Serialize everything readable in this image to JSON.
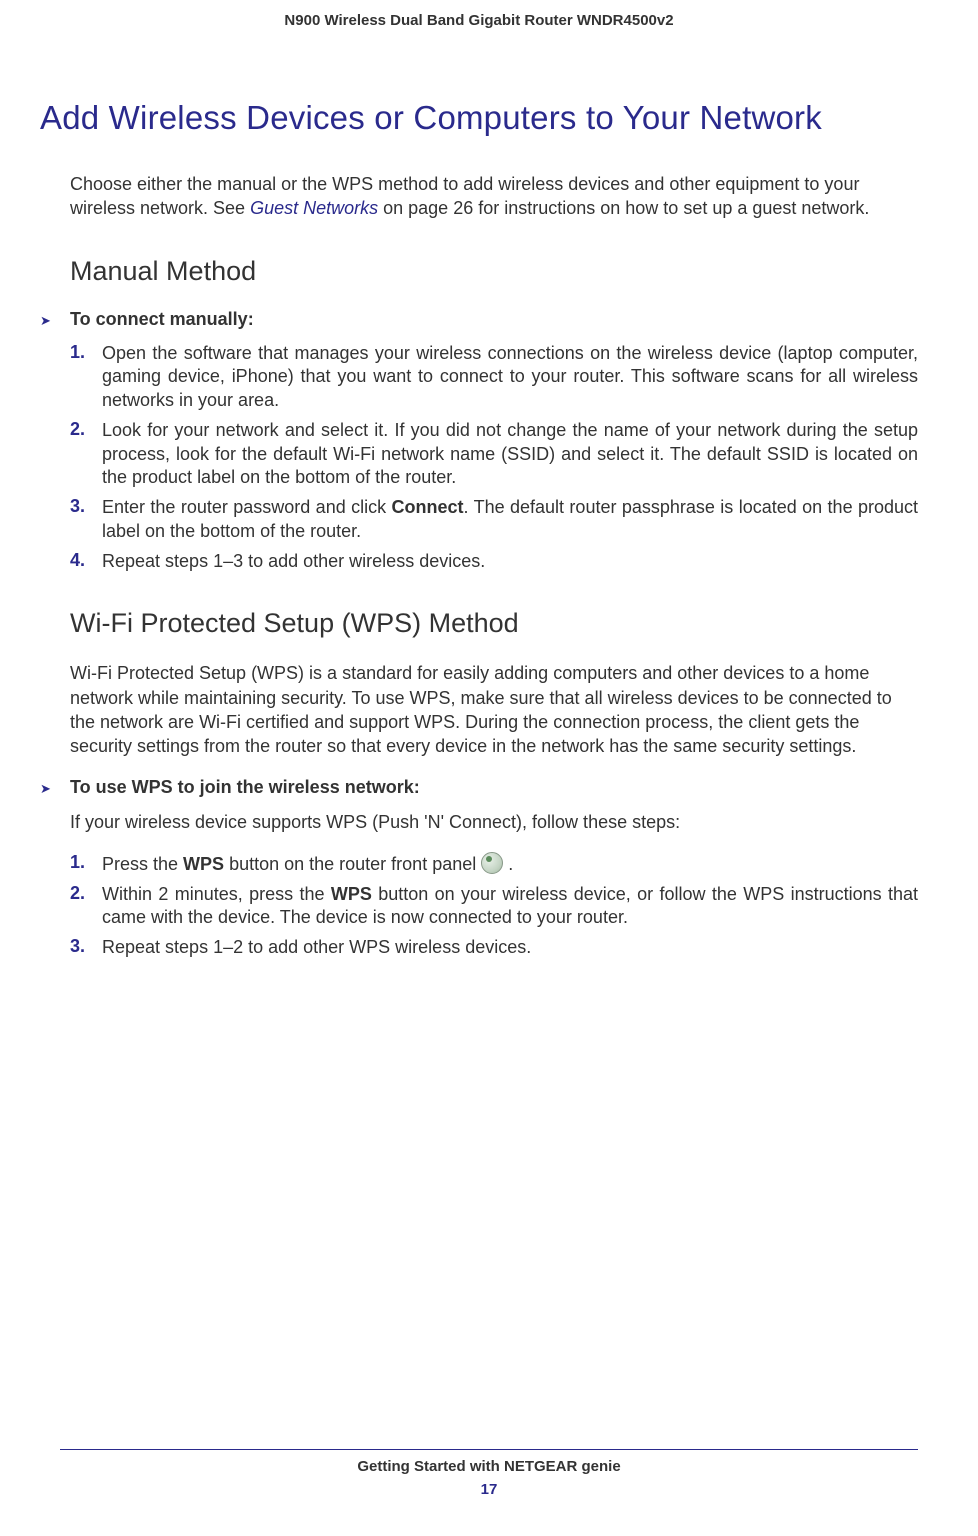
{
  "colors": {
    "heading_blue": "#2a2a8c",
    "body_text": "#333333",
    "background": "#ffffff",
    "footer_rule": "#2a2a8c"
  },
  "fonts": {
    "body_family": "Arial",
    "heading_family": "Segoe UI / Gill Sans",
    "body_size": 18,
    "main_heading_size": 33,
    "sub_heading_size": 27,
    "header_footer_size": 15
  },
  "header": {
    "title": "N900 Wireless Dual Band Gigabit Router WNDR4500v2"
  },
  "main_heading": "Add Wireless Devices or Computers to Your Network",
  "intro": {
    "pre": "Choose either the manual or the WPS method to add wireless devices and other equipment to your wireless network. See ",
    "link": "Guest Networks",
    "post": " on page 26 for instructions on how to set up a guest network."
  },
  "section1": {
    "heading": "Manual Method",
    "proc_heading": "To connect manually:",
    "steps": [
      {
        "num": "1.",
        "text": "Open the software that manages your wireless connections on the wireless device (laptop computer, gaming device, iPhone) that you want to connect to your router. This software scans for all wireless networks in your area."
      },
      {
        "num": "2.",
        "text": "Look for your network and select it. If you did not change the name of your network during the setup process, look for the default Wi-Fi network name (SSID) and select it. The default SSID is located on the product label on the bottom of the router."
      },
      {
        "num": "3.",
        "pre": "Enter the router password and click ",
        "bold": "Connect",
        "post": ". The default router passphrase is located on the product label on the bottom of the router."
      },
      {
        "num": "4.",
        "text": "Repeat steps 1–3 to add other wireless devices."
      }
    ]
  },
  "section2": {
    "heading": "Wi-Fi Protected Setup (WPS) Method",
    "intro": "Wi-Fi Protected Setup (WPS) is a standard for easily adding computers and other devices to a home network while maintaining security. To use WPS, make sure that all wireless devices to be connected to the network are Wi-Fi certified and support WPS. During the connection process, the client gets the security settings from the router so that every device in the network has the same security settings.",
    "proc_heading": "To use WPS to join the wireless network:",
    "proc_sub": "If your wireless device supports WPS (Push 'N' Connect), follow these steps:",
    "steps": [
      {
        "num": "1.",
        "pre": "Press the ",
        "bold": "WPS",
        "post": " button on the router front panel ",
        "icon": "wps-button-icon",
        "tail": " ."
      },
      {
        "num": "2.",
        "pre": "Within 2 minutes, press the ",
        "bold": "WPS",
        "post": " button on your wireless device, or follow the WPS instructions that came with the device. The device is now connected to your router."
      },
      {
        "num": "3.",
        "text": "Repeat steps 1–2 to add other WPS wireless devices."
      }
    ]
  },
  "footer": {
    "text": "Getting Started with NETGEAR genie",
    "page": "17"
  }
}
